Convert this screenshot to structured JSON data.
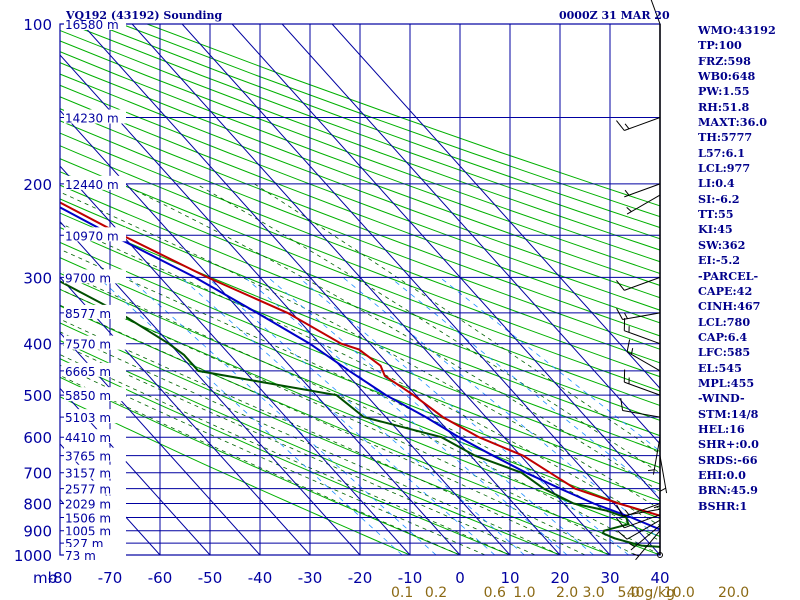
{
  "header": {
    "title": "VQ192 (43192) Sounding",
    "datetime": "0000Z 31 MAR 20"
  },
  "indices": [
    "WMO:43192",
    "TP:100",
    "FRZ:598",
    "WB0:648",
    "PW:1.55",
    "RH:51.8",
    "MAXT:36.0",
    "TH:5777",
    "L57:6.1",
    "LCL:977",
    "LI:0.4",
    "SI:-6.2",
    "TT:55",
    "KI:45",
    "SW:362",
    "EI:-5.2",
    "-PARCEL-",
    "CAPE:42",
    "CINH:467",
    "LCL:780",
    "CAP:6.4",
    "LFC:585",
    "EL:545",
    "MPL:455",
    "-WIND-",
    "STM:14/8",
    "HEL:16",
    "SHR+:0.0",
    "SRDS:-66",
    "EHI:0.0",
    "BRN:45.9",
    "BSHR:1"
  ],
  "colors": {
    "background": "#ffffff",
    "grid": "#0000a0",
    "dry_adiabat": "#00b000",
    "moist_adiabat": "#006400",
    "mixing_ratio": "#1e90ff",
    "temperature": "#c00000",
    "dewpoint": "#005000",
    "parcel": "#0000c8",
    "text": "#00008b",
    "mixing_label": "#8b6914",
    "wind": "#000000"
  },
  "chart_data": {
    "type": "skew-t",
    "xlabel": "",
    "ylabel": "mb",
    "y_scale": "log",
    "pressure_ticks": [
      100,
      200,
      300,
      400,
      500,
      600,
      700,
      800,
      900,
      1000
    ],
    "temperature_ticks": [
      -80,
      -70,
      -60,
      -50,
      -40,
      -30,
      -20,
      -10,
      0,
      10,
      20,
      30,
      40
    ],
    "mixing_ratio_ticks": [
      "0.1",
      "0.2",
      "0.6",
      "1.0",
      "2.0",
      "3.0",
      "5.0",
      "10.0",
      "20.0",
      "40g/kg"
    ],
    "height_labels": [
      {
        "p": 100,
        "label": "16580 m"
      },
      {
        "p": 150,
        "label": "14230 m"
      },
      {
        "p": 200,
        "label": "12440 m"
      },
      {
        "p": 250,
        "label": "10970 m"
      },
      {
        "p": 300,
        "label": "9700 m"
      },
      {
        "p": 350,
        "label": "8577 m"
      },
      {
        "p": 400,
        "label": "7570 m"
      },
      {
        "p": 450,
        "label": "6665 m"
      },
      {
        "p": 500,
        "label": "5850 m"
      },
      {
        "p": 550,
        "label": "5103 m"
      },
      {
        "p": 600,
        "label": "4410 m"
      },
      {
        "p": 650,
        "label": "3765 m"
      },
      {
        "p": 700,
        "label": "3157 m"
      },
      {
        "p": 750,
        "label": "2577 m"
      },
      {
        "p": 800,
        "label": "2029 m"
      },
      {
        "p": 850,
        "label": "1506 m"
      },
      {
        "p": 900,
        "label": "1005 m"
      },
      {
        "p": 950,
        "label": "527 m"
      },
      {
        "p": 1000,
        "label": "73 m"
      }
    ],
    "series": [
      {
        "points": [
          [
            1000,
            26.7
          ],
          [
            990,
            27.5
          ],
          [
            975,
            27.0
          ],
          [
            925,
            26.0
          ],
          [
            900,
            25.5
          ],
          [
            850,
            18.0
          ],
          [
            800,
            11.0
          ],
          [
            750,
            5.0
          ],
          [
            700,
            2.8
          ],
          [
            650,
            0.5
          ],
          [
            600,
            -5.0
          ],
          [
            550,
            -8.6
          ],
          [
            500,
            -10.5
          ],
          [
            460,
            -12.8
          ],
          [
            440,
            -11.8
          ],
          [
            410,
            -13.2
          ],
          [
            400,
            -15.7
          ],
          [
            350,
            -20.9
          ],
          [
            300,
            -30.5
          ],
          [
            250,
            -40.0
          ],
          [
            200,
            -50.3
          ],
          [
            150,
            -62.5
          ],
          [
            100,
            -74.5
          ]
        ]
      },
      {
        "points": [
          [
            1000,
            18.6
          ],
          [
            975,
            17.5
          ],
          [
            960,
            8.0
          ],
          [
            930,
            3.9
          ],
          [
            910,
            2.5
          ],
          [
            900,
            3.2
          ],
          [
            875,
            9.2
          ],
          [
            850,
            10.0
          ],
          [
            825,
            7.3
          ],
          [
            800,
            2.0
          ],
          [
            750,
            -1.3
          ],
          [
            700,
            -2.9
          ],
          [
            650,
            -9.1
          ],
          [
            600,
            -12.5
          ],
          [
            550,
            -24.4
          ],
          [
            500,
            -25.9
          ],
          [
            450,
            -49.2
          ],
          [
            420,
            -49.2
          ],
          [
            400,
            -50.2
          ],
          [
            350,
            -54.5
          ],
          [
            300,
            -61.5
          ],
          [
            250,
            -70.0
          ],
          [
            230,
            -75.0
          ]
        ]
      },
      {
        "points": [
          [
            1000,
            30.0
          ],
          [
            950,
            22.0
          ],
          [
            900,
            15.0
          ],
          [
            850,
            11.0
          ],
          [
            800,
            6.0
          ],
          [
            750,
            2.0
          ],
          [
            700,
            -2.0
          ],
          [
            650,
            -5.5
          ],
          [
            600,
            -9.0
          ],
          [
            550,
            -12.0
          ],
          [
            500,
            -16.0
          ],
          [
            450,
            -19.0
          ],
          [
            400,
            -22.0
          ],
          [
            350,
            -27.0
          ],
          [
            300,
            -33.0
          ],
          [
            250,
            -42.0
          ],
          [
            200,
            -52.0
          ],
          [
            175,
            -58.0
          ],
          [
            160,
            -63.0
          ]
        ]
      }
    ],
    "wind_barbs": [
      {
        "p": 1000,
        "dir": 0,
        "kt": 0
      },
      {
        "p": 900,
        "dir": 220,
        "kt": 5
      },
      {
        "p": 880,
        "dir": 230,
        "kt": 8
      },
      {
        "p": 860,
        "dir": 240,
        "kt": 10
      },
      {
        "p": 840,
        "dir": 250,
        "kt": 10
      },
      {
        "p": 820,
        "dir": 260,
        "kt": 10
      },
      {
        "p": 800,
        "dir": 250,
        "kt": 8
      },
      {
        "p": 700,
        "dir": 180,
        "kt": 5
      },
      {
        "p": 650,
        "dir": 170,
        "kt": 5
      },
      {
        "p": 600,
        "dir": 190,
        "kt": 5
      },
      {
        "p": 550,
        "dir": 280,
        "kt": 10
      },
      {
        "p": 500,
        "dir": 290,
        "kt": 15
      },
      {
        "p": 450,
        "dir": 300,
        "kt": 15
      },
      {
        "p": 400,
        "dir": 290,
        "kt": 15
      },
      {
        "p": 350,
        "dir": 260,
        "kt": 15
      },
      {
        "p": 300,
        "dir": 250,
        "kt": 10
      },
      {
        "p": 210,
        "dir": 240,
        "kt": 5
      },
      {
        "p": 200,
        "dir": 250,
        "kt": 5
      },
      {
        "p": 150,
        "dir": 250,
        "kt": 15
      },
      {
        "p": 100,
        "dir": 340,
        "kt": 20
      }
    ]
  }
}
